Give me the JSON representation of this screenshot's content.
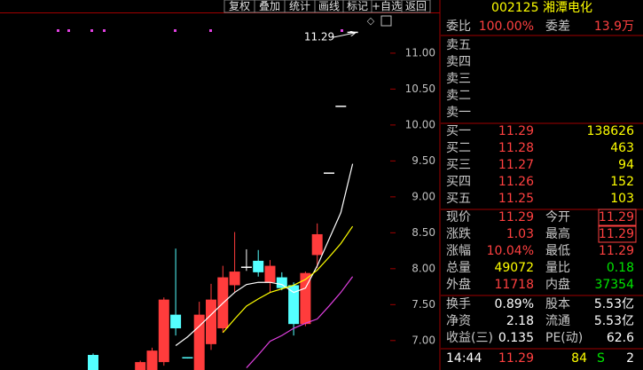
{
  "toolbar": [
    "复权",
    "叠加",
    "统计",
    "画线",
    "标记",
    "+自选",
    "返回"
  ],
  "chart_data": {
    "type": "candlestick",
    "categories": [
      null,
      null,
      null,
      null,
      null,
      null,
      null,
      null,
      null,
      null,
      null,
      null,
      null,
      null,
      null,
      null,
      null,
      null,
      null,
      null,
      null,
      null,
      null
    ],
    "open": [
      6.8,
      null,
      null,
      null,
      6.55,
      6.55,
      6.7,
      7.36,
      6.76,
      6.59,
      6.95,
      7.17,
      7.77,
      8.02,
      8.11,
      7.81,
      7.88,
      7.77,
      7.23,
      8.19,
      9.33,
      10.26,
      11.29
    ],
    "high": [
      6.82,
      null,
      null,
      null,
      6.72,
      6.9,
      7.6,
      8.28,
      6.76,
      7.54,
      7.79,
      8.04,
      8.51,
      8.27,
      8.26,
      8.12,
      7.95,
      7.81,
      7.96,
      8.63,
      9.33,
      10.26,
      11.29
    ],
    "low": [
      6.5,
      null,
      null,
      null,
      6.5,
      6.5,
      6.65,
      7.07,
      6.75,
      6.55,
      6.87,
      7.11,
      7.67,
      7.97,
      7.89,
      7.67,
      7.7,
      7.07,
      7.2,
      8.01,
      9.33,
      10.26,
      11.29
    ],
    "close": [
      6.55,
      null,
      null,
      null,
      6.7,
      6.86,
      7.57,
      7.17,
      6.75,
      7.36,
      7.57,
      7.88,
      7.96,
      8.02,
      7.95,
      8.04,
      7.73,
      7.23,
      7.94,
      8.48,
      9.33,
      10.26,
      11.29
    ],
    "up_color": "#ff3c3c",
    "down_color": "#54ffff",
    "flat_color": "#ffffff",
    "series": [
      {
        "color": "#ffffff",
        "values": [
          null,
          null,
          null,
          null,
          null,
          null,
          null,
          6.93,
          7.05,
          7.2,
          7.36,
          7.52,
          7.67,
          7.78,
          7.81,
          7.81,
          7.78,
          7.67,
          7.73,
          8.04,
          8.41,
          8.78,
          9.46
        ]
      },
      {
        "color": "#ffff00",
        "values": [
          null,
          null,
          null,
          null,
          null,
          null,
          null,
          null,
          null,
          null,
          null,
          7.11,
          7.3,
          7.48,
          7.58,
          7.67,
          7.72,
          7.77,
          7.85,
          7.98,
          8.16,
          8.35,
          8.59
        ]
      },
      {
        "color": "#e040e0",
        "values": [
          null,
          null,
          null,
          null,
          null,
          null,
          null,
          null,
          null,
          null,
          null,
          null,
          null,
          6.62,
          6.8,
          6.99,
          7.07,
          7.17,
          7.24,
          7.3,
          7.48,
          7.67,
          7.89
        ]
      }
    ],
    "ylim": [
      6.59,
      11.74
    ],
    "yticks": [
      {
        "value": 7,
        "label": "7.00"
      },
      {
        "value": 7.5,
        "label": "7.50"
      },
      {
        "value": 8,
        "label": "8.00"
      },
      {
        "value": 8.5,
        "label": "8.50"
      },
      {
        "value": 9,
        "label": "9.00"
      },
      {
        "value": 9.5,
        "label": "9.50"
      },
      {
        "value": 10,
        "label": "10.00"
      },
      {
        "value": 10.5,
        "label": "10.50"
      },
      {
        "value": 11,
        "label": "11.00"
      }
    ],
    "annotation": "11.29"
  },
  "quote": {
    "title": "002125 湘潭电化",
    "committee": [
      "委比",
      "100.00%",
      "委差",
      "13.9万"
    ],
    "asks": [
      "卖五",
      "卖四",
      "卖三",
      "卖二",
      "卖一"
    ],
    "bids": [
      [
        "买一",
        "11.29",
        "138626"
      ],
      [
        "买二",
        "11.28",
        "463"
      ],
      [
        "买三",
        "11.27",
        "94"
      ],
      [
        "买四",
        "11.26",
        "152"
      ],
      [
        "买五",
        "11.25",
        "103"
      ]
    ],
    "stats": [
      [
        "现价",
        "11.29",
        "今开",
        "11.29"
      ],
      [
        "涨跌",
        "1.03",
        "最高",
        "11.29"
      ],
      [
        "涨幅",
        "10.04%",
        "最低",
        "11.29"
      ],
      [
        "总量",
        "49072",
        "量比",
        "0.18"
      ],
      [
        "外盘",
        "11718",
        "内盘",
        "37354"
      ]
    ],
    "finance": [
      [
        "换手",
        "0.89%",
        "股本",
        "5.53亿"
      ],
      [
        "净资",
        "2.18",
        "流通",
        "5.53亿"
      ],
      [
        "收益(三)",
        "0.135",
        "PE(动)",
        "62.6"
      ]
    ],
    "tick": [
      "14:44",
      "11.29",
      "84",
      "S",
      "2"
    ]
  }
}
